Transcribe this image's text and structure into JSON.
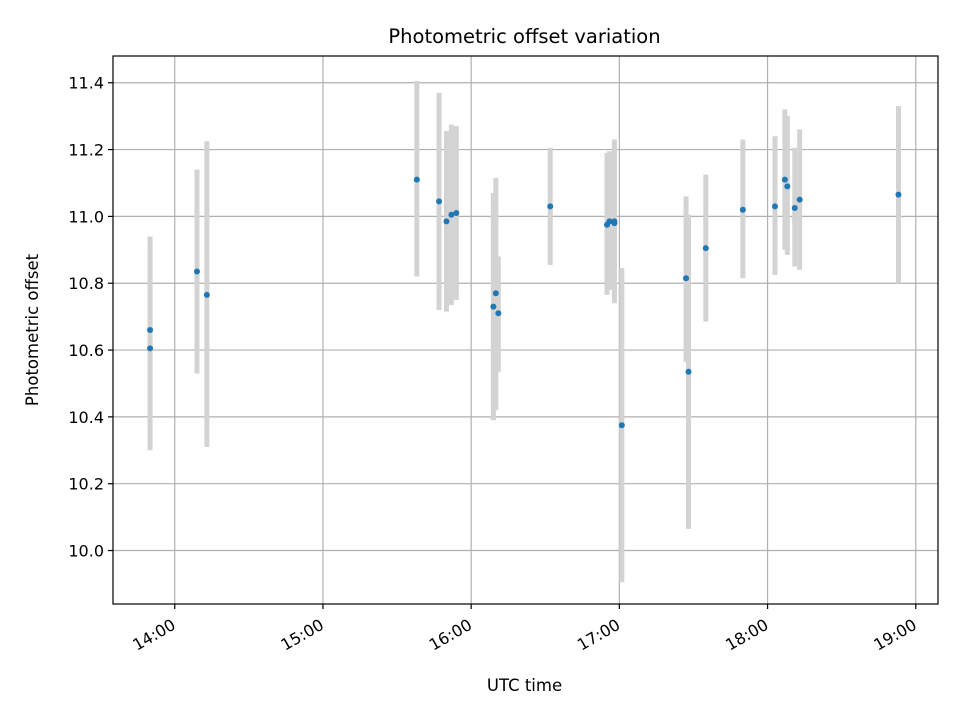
{
  "chart_data": {
    "type": "scatter",
    "title": "Photometric offset variation",
    "xlabel": "UTC time",
    "ylabel": "Photometric offset",
    "x_ticks": [
      "14:00",
      "15:00",
      "16:00",
      "17:00",
      "18:00",
      "19:00"
    ],
    "y_ticks": [
      "10.0",
      "10.2",
      "10.4",
      "10.6",
      "10.8",
      "11.0",
      "11.2",
      "11.4"
    ],
    "xlim": [
      "13:35",
      "19:09"
    ],
    "ylim": [
      9.84,
      11.48
    ],
    "grid": true,
    "marker_color": "#1f77b4",
    "errorbar_color": "#d3d3d3",
    "points": [
      {
        "x": "13:50",
        "y": 10.66,
        "ylow": 10.38,
        "yhigh": 10.94
      },
      {
        "x": "13:50",
        "y": 10.605,
        "ylow": 10.3,
        "yhigh": 10.91
      },
      {
        "x": "14:09",
        "y": 10.835,
        "ylow": 10.53,
        "yhigh": 11.14
      },
      {
        "x": "14:13",
        "y": 10.765,
        "ylow": 10.31,
        "yhigh": 11.225
      },
      {
        "x": "15:38",
        "y": 11.11,
        "ylow": 10.82,
        "yhigh": 11.405
      },
      {
        "x": "15:47",
        "y": 11.045,
        "ylow": 10.72,
        "yhigh": 11.37
      },
      {
        "x": "15:50",
        "y": 10.985,
        "ylow": 10.715,
        "yhigh": 11.255
      },
      {
        "x": "15:52",
        "y": 11.005,
        "ylow": 10.735,
        "yhigh": 11.275
      },
      {
        "x": "15:54",
        "y": 11.01,
        "ylow": 10.75,
        "yhigh": 11.27
      },
      {
        "x": "16:09",
        "y": 10.73,
        "ylow": 10.39,
        "yhigh": 11.07
      },
      {
        "x": "16:10",
        "y": 10.77,
        "ylow": 10.42,
        "yhigh": 11.115
      },
      {
        "x": "16:11",
        "y": 10.71,
        "ylow": 10.535,
        "yhigh": 10.88
      },
      {
        "x": "16:32",
        "y": 11.03,
        "ylow": 10.855,
        "yhigh": 11.205
      },
      {
        "x": "16:55",
        "y": 10.975,
        "ylow": 10.765,
        "yhigh": 11.19
      },
      {
        "x": "16:56",
        "y": 10.985,
        "ylow": 10.78,
        "yhigh": 11.195
      },
      {
        "x": "16:58",
        "y": 10.98,
        "ylow": 10.74,
        "yhigh": 11.23
      },
      {
        "x": "16:58",
        "y": 10.985,
        "ylow": 10.76,
        "yhigh": 11.21
      },
      {
        "x": "17:01",
        "y": 10.375,
        "ylow": 9.905,
        "yhigh": 10.845
      },
      {
        "x": "17:27",
        "y": 10.815,
        "ylow": 10.565,
        "yhigh": 11.06
      },
      {
        "x": "17:28",
        "y": 10.535,
        "ylow": 10.065,
        "yhigh": 11.005
      },
      {
        "x": "17:35",
        "y": 10.905,
        "ylow": 10.685,
        "yhigh": 11.125
      },
      {
        "x": "17:50",
        "y": 11.02,
        "ylow": 10.815,
        "yhigh": 11.23
      },
      {
        "x": "18:03",
        "y": 11.03,
        "ylow": 10.825,
        "yhigh": 11.24
      },
      {
        "x": "18:07",
        "y": 11.11,
        "ylow": 10.9,
        "yhigh": 11.32
      },
      {
        "x": "18:08",
        "y": 11.09,
        "ylow": 10.885,
        "yhigh": 11.3
      },
      {
        "x": "18:11",
        "y": 11.025,
        "ylow": 10.85,
        "yhigh": 11.205
      },
      {
        "x": "18:13",
        "y": 11.05,
        "ylow": 10.84,
        "yhigh": 11.26
      },
      {
        "x": "18:53",
        "y": 11.065,
        "ylow": 10.8,
        "yhigh": 11.33
      }
    ]
  }
}
